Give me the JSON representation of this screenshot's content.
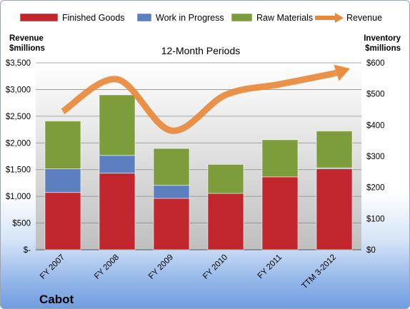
{
  "chart_data": {
    "type": "bar",
    "stacked": true,
    "title": "12-Month Periods",
    "company": "Cabot",
    "left_axis_label": [
      "Revenue",
      "$millions"
    ],
    "right_axis_label": [
      "Inventory",
      "$millions"
    ],
    "categories": [
      "FY 2007",
      "FY 2008",
      "FY 2009",
      "FY 2010",
      "FY 2011",
      "TTM 3-2012"
    ],
    "left_ylim": [
      0,
      3500
    ],
    "right_ylim": [
      0,
      600
    ],
    "left_ticks": [
      {
        "value": 0,
        "label": "$-"
      },
      {
        "value": 500,
        "label": "$500"
      },
      {
        "value": 1000,
        "label": "$1,000"
      },
      {
        "value": 1500,
        "label": "$1,500"
      },
      {
        "value": 2000,
        "label": "$2,000"
      },
      {
        "value": 2500,
        "label": "$2,500"
      },
      {
        "value": 3000,
        "label": "$3,000"
      },
      {
        "value": 3500,
        "label": "$3,500"
      }
    ],
    "right_ticks": [
      {
        "value": 0,
        "label": "$0"
      },
      {
        "value": 100,
        "label": "$100"
      },
      {
        "value": 200,
        "label": "$200"
      },
      {
        "value": 300,
        "label": "$300"
      },
      {
        "value": 400,
        "label": "$400"
      },
      {
        "value": 500,
        "label": "$500"
      },
      {
        "value": 600,
        "label": "$600"
      }
    ],
    "series": [
      {
        "name": "Finished Goods",
        "axis": "right",
        "color": "#c0262b",
        "values": [
          184,
          246,
          165,
          181,
          234,
          260
        ]
      },
      {
        "name": "Work in Progress",
        "axis": "right",
        "color": "#5b7fbf",
        "values": [
          76,
          57,
          42,
          0,
          0,
          3
        ]
      },
      {
        "name": "Raw Materials",
        "axis": "right",
        "color": "#7d9c3c",
        "values": [
          153,
          194,
          118,
          93,
          119,
          118
        ]
      },
      {
        "name": "Revenue",
        "axis": "left",
        "color": "#e8893a",
        "type": "line",
        "values": [
          2590,
          3190,
          2230,
          2900,
          3100,
          3300
        ]
      }
    ],
    "grid": true,
    "legend_position": "top"
  }
}
